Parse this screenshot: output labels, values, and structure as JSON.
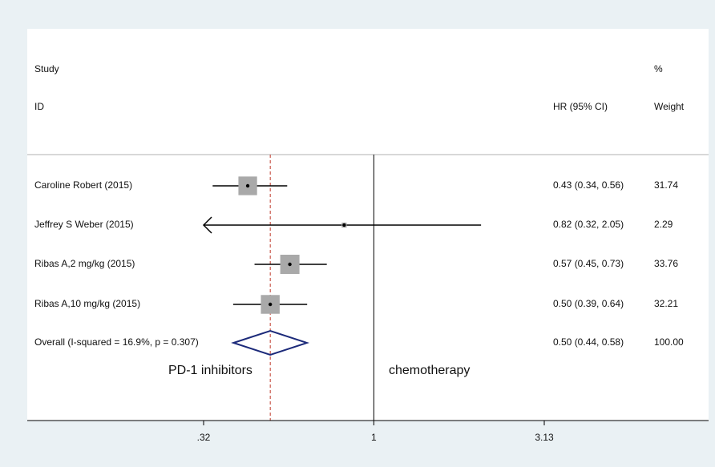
{
  "chart_data": {
    "type": "forest",
    "column_headers": {
      "study": "Study",
      "id": "ID",
      "hr": "HR (95% CI)",
      "weight_top": "%",
      "weight": "Weight"
    },
    "studies": [
      {
        "label": "Caroline Robert  (2015)",
        "hr": 0.43,
        "ci_low": 0.34,
        "ci_high": 0.56,
        "hr_text": "0.43 (0.34, 0.56)",
        "weight": 31.74,
        "weight_text": "31.74"
      },
      {
        "label": "Jeffrey S Weber  (2015)",
        "hr": 0.82,
        "ci_low": 0.32,
        "ci_high": 2.05,
        "hr_text": "0.82 (0.32, 2.05)",
        "weight": 2.29,
        "weight_text": "2.29",
        "ci_low_truncated": true
      },
      {
        "label": "Ribas A,2 mg/kg (2015)",
        "hr": 0.57,
        "ci_low": 0.45,
        "ci_high": 0.73,
        "hr_text": "0.57 (0.45, 0.73)",
        "weight": 33.76,
        "weight_text": "33.76"
      },
      {
        "label": "Ribas A,10 mg/kg (2015)",
        "hr": 0.5,
        "ci_low": 0.39,
        "ci_high": 0.64,
        "hr_text": "0.50 (0.39, 0.64)",
        "weight": 32.21,
        "weight_text": "32.21"
      }
    ],
    "overall": {
      "label": "Overall  (I-squared = 16.9%, p = 0.307)",
      "hr": 0.5,
      "ci_low": 0.44,
      "ci_high": 0.58,
      "hr_text": "0.50 (0.44, 0.58)",
      "weight_text": "100.00"
    },
    "x_scale": "log",
    "xlim": [
      0.32,
      3.13
    ],
    "x_ticks": [
      0.32,
      1,
      3.13
    ],
    "x_tick_labels": [
      ".32",
      "1",
      "3.13"
    ],
    "null_line": 1,
    "pooled_line": 0.5,
    "favours_left": "PD-1 inhibitors",
    "favours_right": "chemotherapy",
    "colors": {
      "background": "#eaf1f4",
      "plot_bg": "#ffffff",
      "box": "#a9a9a9",
      "diamond": "#1c2a7a",
      "pooled_line": "#c0392b",
      "line": "#000000"
    }
  }
}
